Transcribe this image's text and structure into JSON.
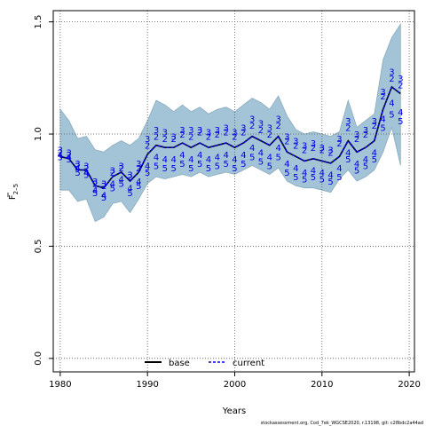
{
  "chart_data": {
    "type": "line",
    "xlabel": "Years",
    "ylabel_main": "F",
    "ylabel_sub": "2–5",
    "xlim": [
      1979.2,
      2020.6
    ],
    "ylim": [
      -0.06,
      1.55
    ],
    "x_ticks": [
      1980,
      1990,
      2000,
      2010,
      2020
    ],
    "y_ticks": [
      0.0,
      0.5,
      1.0,
      1.5
    ],
    "y_tick_labels": [
      "0.0",
      "0.5",
      "1.0",
      "1.5"
    ],
    "grid": true,
    "legend_position": "bottom",
    "footer": "stockassessment.org, Cod_7ek_WGCSE2020, r.13198, git: c28bdc2a44ad",
    "colors": {
      "band": "#a3c4d7",
      "band_edge": "#8aaabd",
      "base": "#000000",
      "current": "#0000e6",
      "retro": "#0000e6",
      "grid": "#555555"
    },
    "years": [
      1980,
      1981,
      1982,
      1983,
      1984,
      1985,
      1986,
      1987,
      1988,
      1989,
      1990,
      1991,
      1992,
      1993,
      1994,
      1995,
      1996,
      1997,
      1998,
      1999,
      2000,
      2001,
      2002,
      2003,
      2004,
      2005,
      2006,
      2007,
      2008,
      2009,
      2010,
      2011,
      2012,
      2013,
      2014,
      2015,
      2016,
      2017,
      2018,
      2019
    ],
    "band_upper": [
      1.11,
      1.06,
      0.98,
      0.99,
      0.93,
      0.92,
      0.95,
      0.97,
      0.95,
      0.98,
      1.06,
      1.15,
      1.13,
      1.1,
      1.13,
      1.1,
      1.12,
      1.09,
      1.11,
      1.12,
      1.1,
      1.13,
      1.16,
      1.14,
      1.11,
      1.17,
      1.08,
      1.02,
      1.0,
      1.01,
      1.0,
      0.99,
      1.01,
      1.15,
      1.03,
      1.06,
      1.09,
      1.33,
      1.43,
      1.49
    ],
    "band_lower": [
      0.75,
      0.75,
      0.7,
      0.71,
      0.61,
      0.63,
      0.69,
      0.7,
      0.65,
      0.71,
      0.78,
      0.81,
      0.8,
      0.81,
      0.82,
      0.81,
      0.83,
      0.81,
      0.82,
      0.83,
      0.82,
      0.84,
      0.86,
      0.84,
      0.82,
      0.85,
      0.79,
      0.77,
      0.76,
      0.76,
      0.75,
      0.74,
      0.8,
      0.84,
      0.79,
      0.81,
      0.84,
      0.92,
      1.03,
      0.86
    ],
    "series": [
      {
        "name": "base",
        "style": "solid",
        "values": [
          0.9,
          0.89,
          0.84,
          0.84,
          0.77,
          0.76,
          0.81,
          0.83,
          0.79,
          0.83,
          0.91,
          0.95,
          0.94,
          0.94,
          0.96,
          0.94,
          0.96,
          0.94,
          0.95,
          0.96,
          0.94,
          0.96,
          0.99,
          0.97,
          0.95,
          0.99,
          0.92,
          0.9,
          0.88,
          0.89,
          0.88,
          0.87,
          0.9,
          0.97,
          0.92,
          0.94,
          0.97,
          1.11,
          1.21,
          1.18
        ]
      },
      {
        "name": "current",
        "style": "dashed",
        "values": [
          0.9,
          0.89,
          0.84,
          0.84,
          0.77,
          0.76,
          0.81,
          0.83,
          0.79,
          0.83,
          0.91,
          0.95,
          0.94,
          0.94,
          0.96,
          0.94,
          0.96,
          0.94,
          0.95,
          0.96,
          0.94,
          0.96,
          0.99,
          0.97,
          0.95,
          0.99,
          0.92,
          0.9,
          0.88,
          0.89,
          0.88,
          0.87,
          0.9,
          0.97,
          0.92,
          0.94,
          0.97,
          1.11,
          1.21,
          1.18
        ]
      }
    ],
    "retro_labels": [
      {
        "label": "2",
        "values": [
          0.92,
          0.91,
          0.86,
          0.85,
          0.78,
          0.77,
          0.83,
          0.85,
          0.81,
          0.85,
          0.95,
          0.99,
          0.98,
          0.98,
          1.0,
          0.99,
          1.01,
          0.99,
          1.0,
          1.01,
          0.99,
          1.01,
          1.04,
          1.02,
          1.0,
          1.04,
          0.97,
          0.95,
          0.93,
          0.94,
          0.93,
          0.92,
          0.96,
          1.03,
          0.98,
          1.0,
          1.04,
          1.17,
          1.25,
          1.22
        ]
      },
      {
        "label": "3",
        "values": [
          0.93,
          0.92,
          0.87,
          0.86,
          0.79,
          0.78,
          0.84,
          0.86,
          0.82,
          0.87,
          0.98,
          1.02,
          1.01,
          0.99,
          1.02,
          1.02,
          1.02,
          1.01,
          1.02,
          1.03,
          1.01,
          1.03,
          1.07,
          1.05,
          1.03,
          1.07,
          0.99,
          0.97,
          0.95,
          0.96,
          0.94,
          0.93,
          0.98,
          1.06,
          1.0,
          1.02,
          1.06,
          1.19,
          1.28,
          1.25
        ]
      },
      {
        "label": "4",
        "values": [
          0.91,
          0.9,
          0.85,
          0.83,
          0.75,
          0.73,
          0.78,
          0.8,
          0.76,
          0.79,
          0.86,
          0.9,
          0.89,
          0.89,
          0.91,
          0.89,
          0.91,
          0.89,
          0.9,
          0.91,
          0.89,
          0.91,
          0.94,
          0.92,
          0.9,
          0.94,
          0.87,
          0.85,
          0.83,
          0.84,
          0.83,
          0.82,
          0.85,
          0.92,
          0.87,
          0.89,
          0.92,
          1.07,
          1.14,
          1.1
        ]
      },
      {
        "label": "5",
        "values": [
          0.9,
          0.89,
          0.83,
          0.82,
          0.74,
          0.72,
          0.76,
          0.78,
          0.74,
          0.77,
          0.83,
          0.86,
          0.85,
          0.85,
          0.87,
          0.85,
          0.87,
          0.85,
          0.86,
          0.87,
          0.85,
          0.87,
          0.9,
          0.88,
          0.86,
          0.9,
          0.83,
          0.81,
          0.8,
          0.81,
          0.8,
          0.79,
          0.81,
          0.89,
          0.84,
          0.86,
          0.89,
          1.03,
          1.09,
          1.06
        ]
      }
    ],
    "retro_start_year": 1988
  }
}
